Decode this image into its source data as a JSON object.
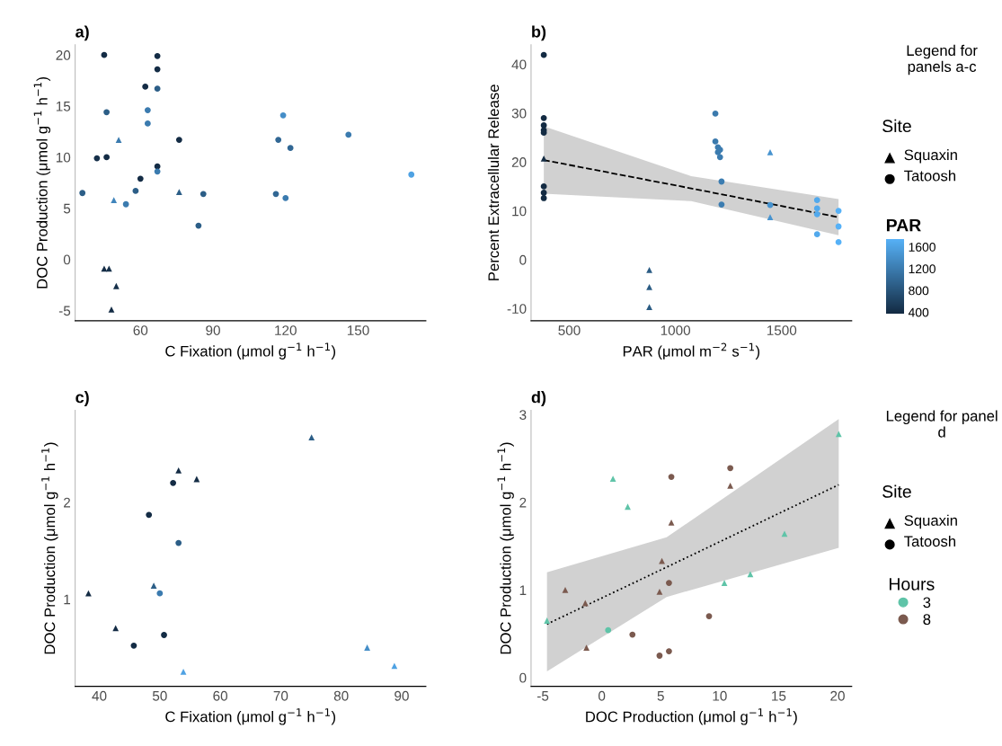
{
  "chart_data": [
    {
      "type": "scatter",
      "title": "a)",
      "xlabel": "C Fixation (μmol g$^{−1}$ h$^{−1}$)",
      "ylabel": "DOC Production (μmol g$^{−1}$ h$^{−1}$)",
      "xlim": [
        33,
        178
      ],
      "xticks": [
        60,
        90,
        120,
        150
      ],
      "ylim": [
        -6,
        21
      ],
      "yticks": [
        -5,
        0,
        5,
        10,
        15,
        20
      ],
      "grid": false,
      "series": [
        {
          "marker": "triangle",
          "x": [
            51,
            49,
            76,
            45,
            47,
            50,
            48
          ],
          "values": [
            11.7,
            5.8,
            6.6,
            -0.9,
            -0.9,
            -2.6,
            -4.9
          ],
          "colors": [
            "#3b7baf",
            "#4085bc",
            "#2c5e87",
            "#142c45",
            "#16304a",
            "#16304a",
            "#142c45"
          ]
        },
        {
          "marker": "circle",
          "x": [
            45,
            67,
            67,
            62,
            67,
            46,
            63,
            63,
            76,
            42,
            46,
            67,
            67,
            60,
            36,
            58,
            54,
            84,
            86,
            119,
            117,
            122,
            146,
            116,
            120,
            172
          ],
          "values": [
            20,
            19.9,
            18.6,
            16.9,
            16.7,
            14.4,
            14.6,
            13.3,
            11.7,
            9.9,
            10,
            9.1,
            8.6,
            7.9,
            6.5,
            6.7,
            5.4,
            3.3,
            6.4,
            14.1,
            11.7,
            10.9,
            12.2,
            6.4,
            6,
            8.3
          ],
          "colors": [
            "#142c45",
            "#142c45",
            "#142c45",
            "#142c45",
            "#2c5e87",
            "#2c5e87",
            "#3b7baf",
            "#3b7baf",
            "#142c45",
            "#16304a",
            "#142c45",
            "#142c45",
            "#3b7baf",
            "#142c45",
            "#2c5e87",
            "#2c5e87",
            "#3b7baf",
            "#2c5e87",
            "#2c5e87",
            "#458ec8",
            "#316794",
            "#316794",
            "#3b7baf",
            "#316794",
            "#3b7baf",
            "#4fa2e3"
          ]
        }
      ]
    },
    {
      "type": "scatter",
      "title": "b)",
      "xlabel": "PAR (μmol m$^{−2}$ s$^{−1}$)",
      "ylabel": "Percent Extracellular Release",
      "xlim": [
        320,
        1830
      ],
      "xticks": [
        500,
        1000,
        1500
      ],
      "ylim": [
        -12.5,
        44
      ],
      "yticks": [
        -10,
        0,
        10,
        20,
        30,
        40
      ],
      "clim": [
        380,
        1750
      ],
      "clabel": "PAR",
      "cticks": [
        400,
        800,
        1200,
        1600
      ],
      "annotations": [
        "Legend for panels a-c",
        "Site",
        "Squaxin",
        "Tatoosh"
      ],
      "grid": false,
      "series": [
        {
          "marker": "triangle",
          "x": [
            380,
            877,
            877,
            877,
            1446,
            1446
          ],
          "values": [
            20.7,
            -2.1,
            -5.6,
            -9.7,
            22,
            8.7
          ],
          "colors": [
            "#132b43",
            "#2b5c84",
            "#2b5c84",
            "#2b5c84",
            "#4793cf",
            "#4793cf"
          ]
        },
        {
          "marker": "circle",
          "x": [
            380,
            380,
            380,
            380,
            380,
            380,
            380,
            380,
            1188,
            1188,
            1200,
            1200,
            1210,
            1210,
            1217,
            1217,
            1446,
            1667,
            1667,
            1667,
            1667,
            1768,
            1768,
            1768
          ],
          "values": [
            41.9,
            29,
            27.5,
            26.5,
            26,
            15,
            13.7,
            12.6,
            29.9,
            24.2,
            23,
            22,
            22.5,
            21,
            16,
            11.3,
            11.2,
            12.2,
            10.5,
            9.3,
            5.2,
            10,
            6.8,
            3.6
          ],
          "colors": [
            "#132b43",
            "#132b43",
            "#132b43",
            "#132b43",
            "#132b43",
            "#132b43",
            "#132b43",
            "#132b43",
            "#3b7aad",
            "#3b7aad",
            "#3b7baf",
            "#3b7baf",
            "#3c7cb0",
            "#3c7cb0",
            "#3c7db1",
            "#3c7db1",
            "#4793cf",
            "#52a9ec",
            "#52a9ec",
            "#52a9ec",
            "#52a9ec",
            "#56b1f7",
            "#56b1f7",
            "#56b1f7"
          ]
        },
        {
          "type": "line",
          "color": "#000000",
          "line_style": "dashed",
          "x": [
            380,
            1074,
            1768
          ],
          "values": [
            20.4,
            14.6,
            8.7
          ],
          "lower": [
            13.5,
            12.0,
            5.0
          ],
          "upper": [
            27.3,
            17.1,
            12.4
          ]
        }
      ]
    },
    {
      "type": "scatter",
      "title": "c)",
      "xlabel": "C Fixation (μmol g$^{−1}$ h$^{−1}$)",
      "ylabel": "DOC Production (μmol g$^{−1}$ h$^{−1}$)",
      "xlim": [
        36,
        94
      ],
      "xticks": [
        40,
        50,
        60,
        70,
        80,
        90
      ],
      "ylim": [
        0.1,
        2.95
      ],
      "yticks": [
        1,
        2
      ],
      "grid": false,
      "series": [
        {
          "marker": "triangle",
          "x": [
            53.1,
            56.1,
            49,
            38.2,
            42.7,
            53.9,
            75.1,
            84.3,
            88.8
          ],
          "values": [
            2.33,
            2.24,
            1.14,
            1.06,
            0.7,
            0.25,
            2.67,
            0.5,
            0.31
          ],
          "colors": [
            "#142c45",
            "#142c45",
            "#2c5e87",
            "#142c45",
            "#142c45",
            "#4fa2e3",
            "#2c5e87",
            "#458ec8",
            "#4fa2e3"
          ]
        },
        {
          "marker": "circle",
          "x": [
            52.2,
            48.2,
            53.1,
            50,
            50.7,
            45.7
          ],
          "values": [
            2.2,
            1.87,
            1.58,
            1.06,
            0.63,
            0.52
          ],
          "colors": [
            "#142c45",
            "#142c45",
            "#2c5e87",
            "#3b7baf",
            "#142c45",
            "#142c45"
          ]
        }
      ]
    },
    {
      "type": "scatter",
      "title": "d)",
      "xlabel": "DOC Production (μmol g$^{−1}$ h$^{−1}$)",
      "ylabel": "DOC Production (μmol g$^{−1}$ h$^{−1}$)",
      "xlim": [
        -6,
        21.2
      ],
      "xticks": [
        -5,
        0,
        5,
        10,
        15,
        20
      ],
      "ylim": [
        -0.1,
        3.05
      ],
      "yticks": [
        0,
        1,
        2,
        3
      ],
      "legend": "right",
      "legend_title": "Hours",
      "annotations": [
        "Legend for panel d",
        "Site",
        "Squaxin",
        "Tatoosh"
      ],
      "grid": false,
      "series": [
        {
          "name": "3",
          "color": "#5fc4a8",
          "marker": "triangle",
          "x": [
            0.95,
            2.2,
            20.1,
            15.5,
            10.4,
            12.6,
            -4.65
          ],
          "values": [
            2.27,
            1.95,
            2.78,
            1.64,
            1.08,
            1.18,
            0.65
          ]
        },
        {
          "name": "8",
          "color": "#7b5a4f",
          "marker": "circle",
          "x": [
            5.9,
            10.9,
            5.7,
            9.1,
            2.6,
            4.9,
            5.7
          ],
          "values": [
            2.29,
            2.39,
            1.08,
            0.7,
            0.49,
            0.25,
            0.3
          ]
        },
        {
          "color": "#7b5a4f",
          "marker": "triangle",
          "x": [
            10.9,
            5.9,
            5.1,
            4.9,
            -3.1,
            -1.4,
            -1.3
          ],
          "values": [
            2.19,
            1.77,
            1.33,
            0.98,
            1.0,
            0.85,
            0.34
          ]
        },
        {
          "color": "#5fc4a8",
          "marker": "circle",
          "x": [
            0.54
          ],
          "values": [
            0.54
          ]
        },
        {
          "type": "line",
          "color": "#000000",
          "line_style": "dotted",
          "x": [
            -4.65,
            5.5,
            20.1
          ],
          "values": [
            0.61,
            1.26,
            2.2
          ],
          "lower": [
            0.07,
            0.92,
            1.48
          ],
          "upper": [
            1.2,
            1.6,
            2.95
          ]
        }
      ]
    }
  ]
}
